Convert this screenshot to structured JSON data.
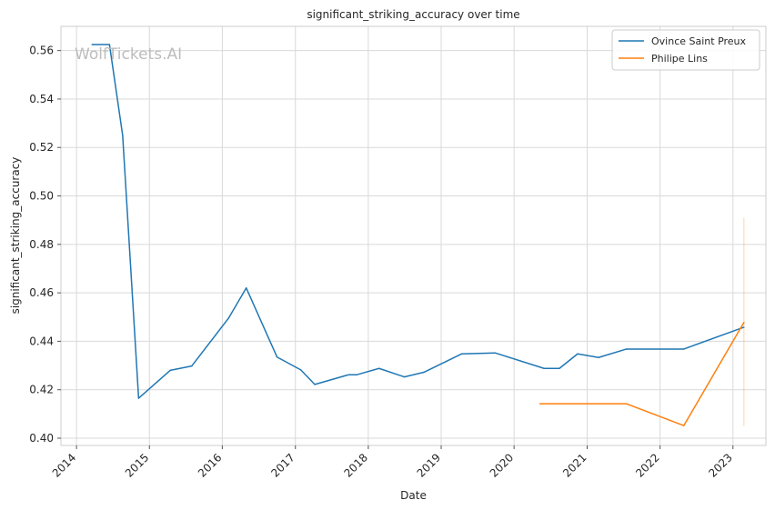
{
  "chart_data": {
    "type": "line",
    "title": "significant_striking_accuracy over time",
    "xlabel": "Date",
    "ylabel": "significant_striking_accuracy",
    "xlim": [
      "2013-10-15",
      "2023-06-15"
    ],
    "ylim": [
      0.397,
      0.57
    ],
    "x_ticks": [
      "2014",
      "2015",
      "2016",
      "2017",
      "2018",
      "2019",
      "2020",
      "2021",
      "2022",
      "2023"
    ],
    "y_ticks": [
      "0.40",
      "0.42",
      "0.44",
      "0.46",
      "0.48",
      "0.50",
      "0.52",
      "0.54",
      "0.56"
    ],
    "grid": true,
    "legend_position": "top-right",
    "watermark": "WolfTickets.AI",
    "colors": {
      "series_1": "#1f77b4",
      "series_2": "#ff7f0e",
      "grid": "#d9d9d9",
      "axes": "#cccccc"
    },
    "series": [
      {
        "name": "Ovince Saint Preux",
        "color": "#1f77b4",
        "points": [
          [
            "2014-03-20",
            0.5625
          ],
          [
            "2014-06-15",
            0.5625
          ],
          [
            "2014-08-20",
            0.525
          ],
          [
            "2014-11-08",
            0.4165
          ],
          [
            "2015-04-15",
            0.428
          ],
          [
            "2015-08-01",
            0.4298
          ],
          [
            "2016-02-01",
            0.4495
          ],
          [
            "2016-04-30",
            0.462
          ],
          [
            "2016-10-01",
            0.4335
          ],
          [
            "2017-01-28",
            0.4282
          ],
          [
            "2017-04-08",
            0.4222
          ],
          [
            "2017-09-25",
            0.4262
          ],
          [
            "2017-11-05",
            0.4262
          ],
          [
            "2018-02-24",
            0.4288
          ],
          [
            "2018-06-30",
            0.4253
          ],
          [
            "2018-10-06",
            0.4272
          ],
          [
            "2019-04-13",
            0.4348
          ],
          [
            "2019-09-28",
            0.4352
          ],
          [
            "2020-05-30",
            0.4288
          ],
          [
            "2020-08-15",
            0.4288
          ],
          [
            "2020-11-14",
            0.4348
          ],
          [
            "2021-02-27",
            0.4333
          ],
          [
            "2021-07-17",
            0.4368
          ],
          [
            "2022-04-30",
            0.4368
          ],
          [
            "2023-02-25",
            0.4458
          ]
        ]
      },
      {
        "name": "Philipe Lins",
        "color": "#ff7f0e",
        "points": [
          [
            "2020-05-10",
            0.4142
          ],
          [
            "2021-07-17",
            0.4142
          ],
          [
            "2022-04-30",
            0.4052
          ],
          [
            "2023-02-25",
            0.4478
          ]
        ],
        "error_bar": {
          "x": "2023-02-25",
          "low": 0.405,
          "high": 0.491
        }
      }
    ]
  }
}
